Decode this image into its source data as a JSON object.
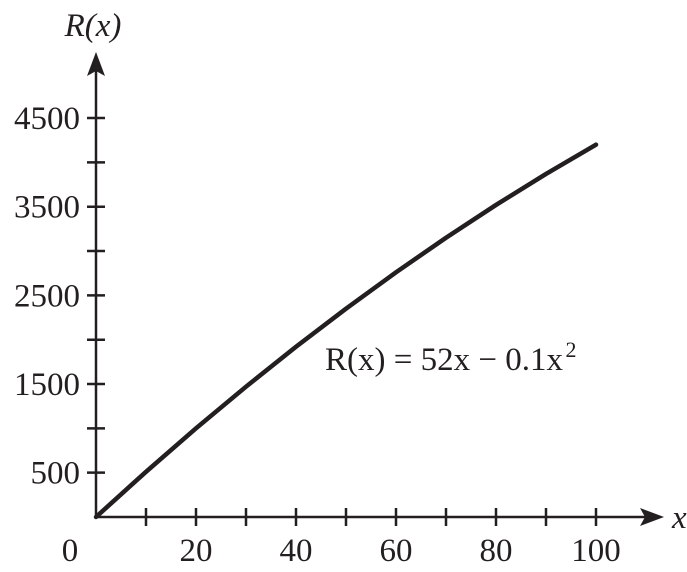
{
  "chart_data": {
    "type": "line",
    "y_label": "R(x)",
    "x_label": "x",
    "annotation": "R(x) = 52x − 0.1x",
    "annotation_superscript": "2",
    "x": [
      0,
      10,
      20,
      30,
      40,
      50,
      60,
      70,
      80,
      90,
      100
    ],
    "series": [
      {
        "name": "R(x)",
        "color": "#231f20",
        "values": [
          0,
          510,
          1000,
          1470,
          1920,
          2350,
          2760,
          3150,
          3520,
          3870,
          4200
        ]
      }
    ],
    "xlim": [
      0,
      113
    ],
    "ylim": [
      0,
      5200
    ],
    "xticks": [
      0,
      20,
      40,
      60,
      80,
      100
    ],
    "xminorticks": [
      10,
      30,
      50,
      70,
      90
    ],
    "yticks": [
      500,
      1500,
      2500,
      3500,
      4500
    ],
    "yminorticks": [
      1000,
      2000,
      3000,
      4000
    ]
  }
}
